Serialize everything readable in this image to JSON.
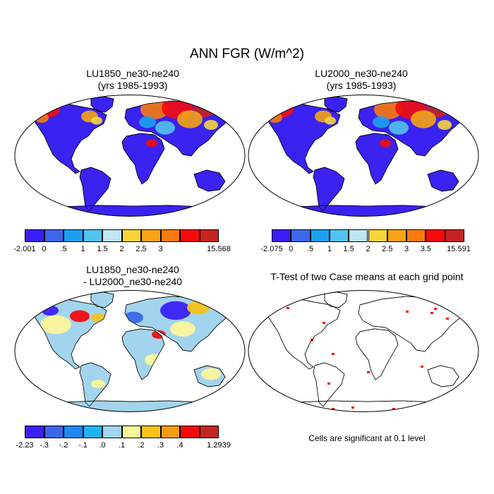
{
  "figure": {
    "title": "ANN FGR (W/m^2)",
    "note": "Cells are significant at 0.1 level"
  },
  "colors": {
    "land_mask": "#3a22f0",
    "outline": "#000000",
    "significance": "#ff0000"
  },
  "panels": [
    {
      "id": "p1",
      "title": "LU1850_ne30-ne240\n(yrs 1985-1993)",
      "colorbar": {
        "colors": [
          "#3b1ff5",
          "#3c67e8",
          "#1ea0f0",
          "#52c3ef",
          "#bfe6f2",
          "#f7d53a",
          "#f6a414",
          "#f97a0e",
          "#f40b0b",
          "#c52424"
        ],
        "labels": [
          "-2.001",
          "0",
          ".5",
          "1",
          "1.5",
          "2",
          "2.5",
          "3",
          "",
          "15.568"
        ]
      }
    },
    {
      "id": "p2",
      "title": "LU2000_ne30-ne240\n(yrs 1985-1993)",
      "colorbar": {
        "colors": [
          "#3b1ff5",
          "#3c67e8",
          "#1ea0f0",
          "#52c3ef",
          "#bfe6f2",
          "#f7d53a",
          "#f6a414",
          "#f97a0e",
          "#f40b0b",
          "#c52424"
        ],
        "labels": [
          "-2.075",
          "0",
          ".5",
          "1",
          "1.5",
          "2",
          "2.5",
          "3",
          "3.5",
          "15.591"
        ]
      }
    },
    {
      "id": "p3",
      "title": "LU1850_ne30-ne240\n- LU2000_ne30-ne240",
      "colorbar": {
        "colors": [
          "#3b1ff5",
          "#3c67e8",
          "#1e88f0",
          "#1eb4f2",
          "#a2d4ee",
          "#fbf59a",
          "#f6c21b",
          "#f69b14",
          "#f40b0b",
          "#c52424"
        ],
        "labels": [
          "-2.23",
          "",
          "-.3",
          "-.2",
          "-.1",
          ".0",
          ".1",
          ".2",
          ".3",
          ".4",
          "1.2939"
        ]
      }
    },
    {
      "id": "p4",
      "title": "T-Test of two Case means at each grid point"
    }
  ]
}
